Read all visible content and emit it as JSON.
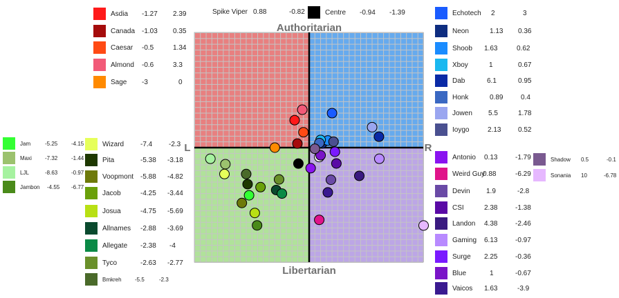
{
  "chart_data": {
    "type": "scatter",
    "title": "",
    "xlabel_left": "L",
    "xlabel_right": "R",
    "ylabel_top": "Authoritarian",
    "ylabel_bottom": "Libertarian",
    "xlim": [
      -10,
      10
    ],
    "ylim": [
      -10,
      10
    ],
    "grid": true,
    "quadrant_colors": {
      "top_left": "#e88080",
      "top_right": "#66aaee",
      "bottom_left": "#b0e29a",
      "bottom_right": "#bca6e6"
    },
    "points": [
      {
        "name": "Asdia",
        "x": -1.27,
        "y": 2.39,
        "color": "#ff1a1a",
        "x_label": "-1.27",
        "y_label": "2.39"
      },
      {
        "name": "Canada",
        "x": -1.03,
        "y": 0.35,
        "color": "#a50c0c",
        "x_label": "-1.03",
        "y_label": "0.35"
      },
      {
        "name": "Caesar",
        "x": -0.5,
        "y": 1.34,
        "color": "#ff4a14",
        "x_label": "-0.5",
        "y_label": "1.34"
      },
      {
        "name": "Almond",
        "x": -0.6,
        "y": 3.3,
        "color": "#f25a78",
        "x_label": "-0.6",
        "y_label": "3.3"
      },
      {
        "name": "Sage",
        "x": -3,
        "y": 0,
        "color": "#ff8a00",
        "x_label": "-3",
        "y_label": "0"
      },
      {
        "name": "Spike Viper",
        "x": 0.88,
        "y": -0.82,
        "color": "#ffffff",
        "x_label": "0.88",
        "y_label": "-0.82"
      },
      {
        "name": "Centre",
        "x": -0.94,
        "y": -1.39,
        "color": "#000000",
        "x_label": "-0.94",
        "y_label": "-1.39"
      },
      {
        "name": "Echotech",
        "x": 2,
        "y": 3,
        "color": "#1a5cff",
        "x_label": "2",
        "y_label": "3"
      },
      {
        "name": "Neon",
        "x": 1.13,
        "y": 0.36,
        "color": "#0e2d80",
        "x_label": "1.13",
        "y_label": "0.36"
      },
      {
        "name": "Shoob",
        "x": 1.63,
        "y": 0.62,
        "color": "#1a8cff",
        "x_label": "1.63",
        "y_label": "0.62"
      },
      {
        "name": "Xboy",
        "x": 1,
        "y": 0.67,
        "color": "#1ab8f0",
        "x_label": "1",
        "y_label": "0.67"
      },
      {
        "name": "Dab",
        "x": 6.1,
        "y": 0.95,
        "color": "#0a2aa6",
        "x_label": "6.1",
        "y_label": "0.95"
      },
      {
        "name": "Honk",
        "x": 0.89,
        "y": 0.4,
        "color": "#3a68c2",
        "x_label": "0.89",
        "y_label": "0.4"
      },
      {
        "name": "Jowen",
        "x": 5.5,
        "y": 1.78,
        "color": "#9aa6f0",
        "x_label": "5.5",
        "y_label": "1.78"
      },
      {
        "name": "Ioygo",
        "x": 2.13,
        "y": 0.52,
        "color": "#4a5090",
        "x_label": "2.13",
        "y_label": "0.52"
      },
      {
        "name": "Jam",
        "x": -5.25,
        "y": -4.15,
        "color": "#33ff33",
        "x_label": "-5.25",
        "y_label": "-4.15"
      },
      {
        "name": "Maxi",
        "x": -7.32,
        "y": -1.44,
        "color": "#9cc26e",
        "x_label": "-7.32",
        "y_label": "-1.44"
      },
      {
        "name": "LJL",
        "x": -8.63,
        "y": -0.97,
        "color": "#a6f2a0",
        "x_label": "-8.63",
        "y_label": "-0.97"
      },
      {
        "name": "Jambon",
        "x": -4.55,
        "y": -6.77,
        "color": "#4a8a1a",
        "x_label": "-4.55",
        "y_label": "-6.77"
      },
      {
        "name": "Wizard",
        "x": -7.4,
        "y": -2.3,
        "color": "#e6ff5a",
        "x_label": "-7.4",
        "y_label": "-2.3"
      },
      {
        "name": "Pita",
        "x": -5.38,
        "y": -3.18,
        "color": "#1e3800",
        "x_label": "-5.38",
        "y_label": "-3.18"
      },
      {
        "name": "Voopmont",
        "x": -5.88,
        "y": -4.82,
        "color": "#6e7a0a",
        "x_label": "-5.88",
        "y_label": "-4.82"
      },
      {
        "name": "Jacob",
        "x": -4.25,
        "y": -3.44,
        "color": "#6aa00a",
        "x_label": "-4.25",
        "y_label": "-3.44"
      },
      {
        "name": "Josua",
        "x": -4.75,
        "y": -5.69,
        "color": "#b8e014",
        "x_label": "-4.75",
        "y_label": "-5.69"
      },
      {
        "name": "Allnames",
        "x": -2.88,
        "y": -3.69,
        "color": "#0a4a2e",
        "x_label": "-2.88",
        "y_label": "-3.69"
      },
      {
        "name": "Allegate",
        "x": -2.38,
        "y": -4,
        "color": "#0a8a46",
        "x_label": "-2.38",
        "y_label": "-4"
      },
      {
        "name": "Tyco",
        "x": -2.63,
        "y": -2.77,
        "color": "#6a902a",
        "x_label": "-2.63",
        "y_label": "-2.77"
      },
      {
        "name": "Bmkreh",
        "x": -5.5,
        "y": -2.3,
        "color": "#4a6a2a",
        "x_label": "-5.5",
        "y_label": "-2.3"
      },
      {
        "name": "Antonio",
        "x": 0.13,
        "y": -1.79,
        "color": "#8a14f0",
        "x_label": "0.13",
        "y_label": "-1.79"
      },
      {
        "name": "Weird Guy",
        "x": 0.88,
        "y": -6.29,
        "color": "#e0148a",
        "x_label": "0.88",
        "y_label": "-6.29"
      },
      {
        "name": "Devin",
        "x": 1.9,
        "y": -2.8,
        "color": "#6a4aa6",
        "x_label": "1.9",
        "y_label": "-2.8"
      },
      {
        "name": "CSI",
        "x": 2.38,
        "y": -1.38,
        "color": "#5a0aa6",
        "x_label": "2.38",
        "y_label": "-1.38"
      },
      {
        "name": "Landon",
        "x": 4.38,
        "y": -2.46,
        "color": "#3a1a80",
        "x_label": "4.38",
        "y_label": "-2.46"
      },
      {
        "name": "Gaming",
        "x": 6.13,
        "y": -0.97,
        "color": "#b88aff",
        "x_label": "6.13",
        "y_label": "-0.97"
      },
      {
        "name": "Surge",
        "x": 2.25,
        "y": -0.36,
        "color": "#7a1aff",
        "x_label": "2.25",
        "y_label": "-0.36"
      },
      {
        "name": "Blue",
        "x": 1,
        "y": -0.67,
        "color": "#7a14c8",
        "x_label": "1",
        "y_label": "-0.67"
      },
      {
        "name": "Vaicos",
        "x": 1.63,
        "y": -3.9,
        "color": "#3a1a90",
        "x_label": "1.63",
        "y_label": "-3.9"
      },
      {
        "name": "Shadow",
        "x": 0.5,
        "y": -0.1,
        "color": "#7a5a90",
        "x_label": "0.5",
        "y_label": "-0.1"
      },
      {
        "name": "Sonania",
        "x": 10,
        "y": -6.78,
        "color": "#e6b8ff",
        "x_label": "10",
        "y_label": "-6.78"
      }
    ]
  }
}
